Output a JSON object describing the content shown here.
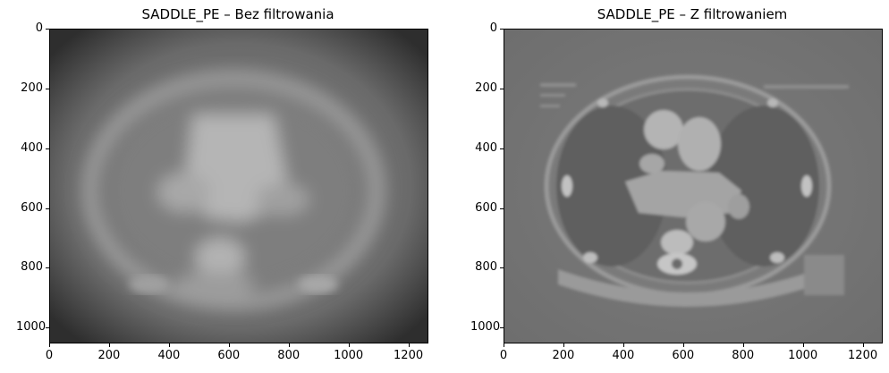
{
  "panels": [
    {
      "title": "SADDLE_PE – Bez filtrowania",
      "image_kind": "blurred-ct-slice",
      "xticks": [
        "0",
        "200",
        "400",
        "600",
        "800",
        "1000",
        "1200"
      ],
      "yticks": [
        "0",
        "200",
        "400",
        "600",
        "800",
        "1000"
      ],
      "xtick_values": [
        0,
        200,
        400,
        600,
        800,
        1000,
        1200
      ],
      "ytick_values": [
        0,
        200,
        400,
        600,
        800,
        1000
      ],
      "xlim": [
        0,
        1267
      ],
      "ylim": [
        1053,
        0
      ]
    },
    {
      "title": "SADDLE_PE – Z filtrowaniem",
      "image_kind": "filtered-ct-slice",
      "xticks": [
        "0",
        "200",
        "400",
        "600",
        "800",
        "1000",
        "1200"
      ],
      "yticks": [
        "0",
        "200",
        "400",
        "600",
        "800",
        "1000"
      ],
      "xtick_values": [
        0,
        200,
        400,
        600,
        800,
        1000,
        1200
      ],
      "ytick_values": [
        0,
        200,
        400,
        600,
        800,
        1000
      ],
      "xlim": [
        0,
        1267
      ],
      "ylim": [
        1053,
        0
      ]
    }
  ]
}
